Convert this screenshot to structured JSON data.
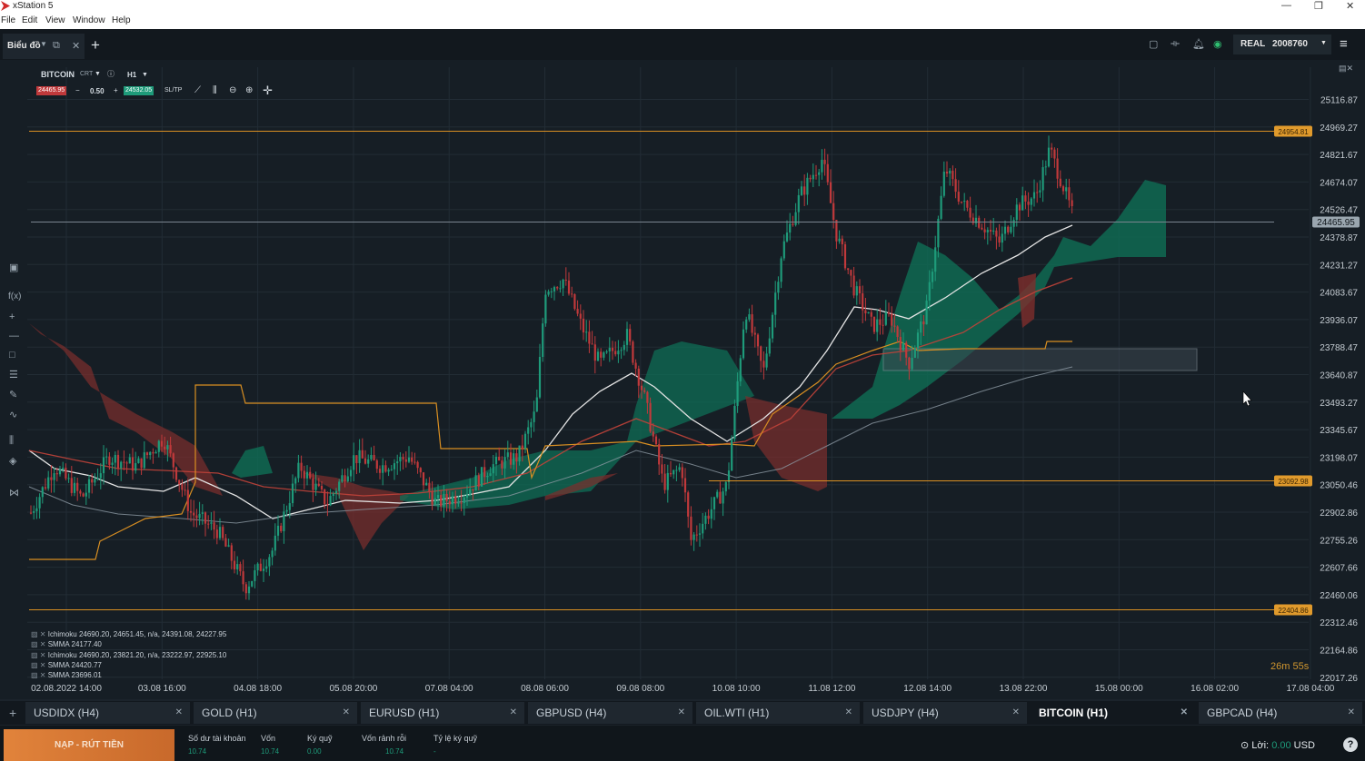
{
  "window": {
    "title": "xStation 5",
    "controls": {
      "minimize": "—",
      "restore": "❐",
      "close": "✕"
    }
  },
  "menu": [
    "File",
    "Edit",
    "View",
    "Window",
    "Help"
  ],
  "top_tab": {
    "label": "Biểu đồ"
  },
  "account": {
    "mode": "REAL",
    "number": "2008760"
  },
  "instrument": {
    "symbol": "BITCOIN",
    "type": "CRT",
    "timeframe": "H1",
    "sell_price": "24465.95",
    "volume": "0.50",
    "buy_price": "24532.05",
    "sltp": "SL/TP"
  },
  "colors": {
    "bull": "#1e9b7a",
    "bear": "#c0393b",
    "level": "#d98f22",
    "cloud_bull": "#0f6e55",
    "cloud_bear": "#7e2d2c",
    "smma_white": "#e4e4e4",
    "smma_red": "#c1433a",
    "deposit": "#d8763a"
  },
  "price_axis": [
    "25116.87",
    "24969.27",
    "24821.67",
    "24674.07",
    "24526.47",
    "24378.87",
    "24231.27",
    "24083.67",
    "23936.07",
    "23788.47",
    "23640.87",
    "23493.27",
    "23345.67",
    "23198.07",
    "23050.46",
    "22902.86",
    "22755.26",
    "22607.66",
    "22460.06",
    "22312.46",
    "22164.86",
    "22017.26"
  ],
  "time_axis": [
    "02.08.2022 14:00",
    "03.08 16:00",
    "04.08 18:00",
    "05.08 20:00",
    "07.08 04:00",
    "08.08 06:00",
    "09.08 08:00",
    "10.08 10:00",
    "11.08 12:00",
    "12.08 14:00",
    "13.08 22:00",
    "15.08 00:00",
    "16.08 02:00",
    "17.08 04:00"
  ],
  "level_tags": {
    "top": "24954.81",
    "current": "24465.95",
    "mid": "23092.98",
    "bottom": "22404.86"
  },
  "indicators": [
    "Ichimoku 24690.20, 24651.45, n/a, 24391.08, 24227.95",
    "SMMA 24177.40",
    "Ichimoku 24690.20, 23821.20, n/a, 23222.97, 22925.10",
    "SMMA 24420.77",
    "SMMA 23696.01"
  ],
  "countdown": "26m 55s",
  "tabs": [
    {
      "label": "USDIDX (H4)"
    },
    {
      "label": "GOLD (H1)"
    },
    {
      "label": "EURUSD (H1)"
    },
    {
      "label": "GBPUSD (H4)"
    },
    {
      "label": "OIL.WTI (H1)"
    },
    {
      "label": "USDJPY (H4)"
    },
    {
      "label": "BITCOIN (H1)"
    },
    {
      "label": "GBPCAD (H4)"
    }
  ],
  "tab_close": "✕",
  "bottom": {
    "deposit_label": "NẠP - RÚT TIỀN",
    "columns": [
      {
        "label": "Số dư tài khoản",
        "value": "10.74"
      },
      {
        "label": "Vốn",
        "value": "10.74"
      },
      {
        "label": "Ký quỹ",
        "value": "0.00"
      },
      {
        "label": "Vốn rảnh rỗi",
        "value": "10.74"
      },
      {
        "label": "Tỷ lệ ký quỹ",
        "value": "-"
      }
    ],
    "profit_label": "Lời:",
    "profit_value": "0.00",
    "currency": "USD"
  }
}
